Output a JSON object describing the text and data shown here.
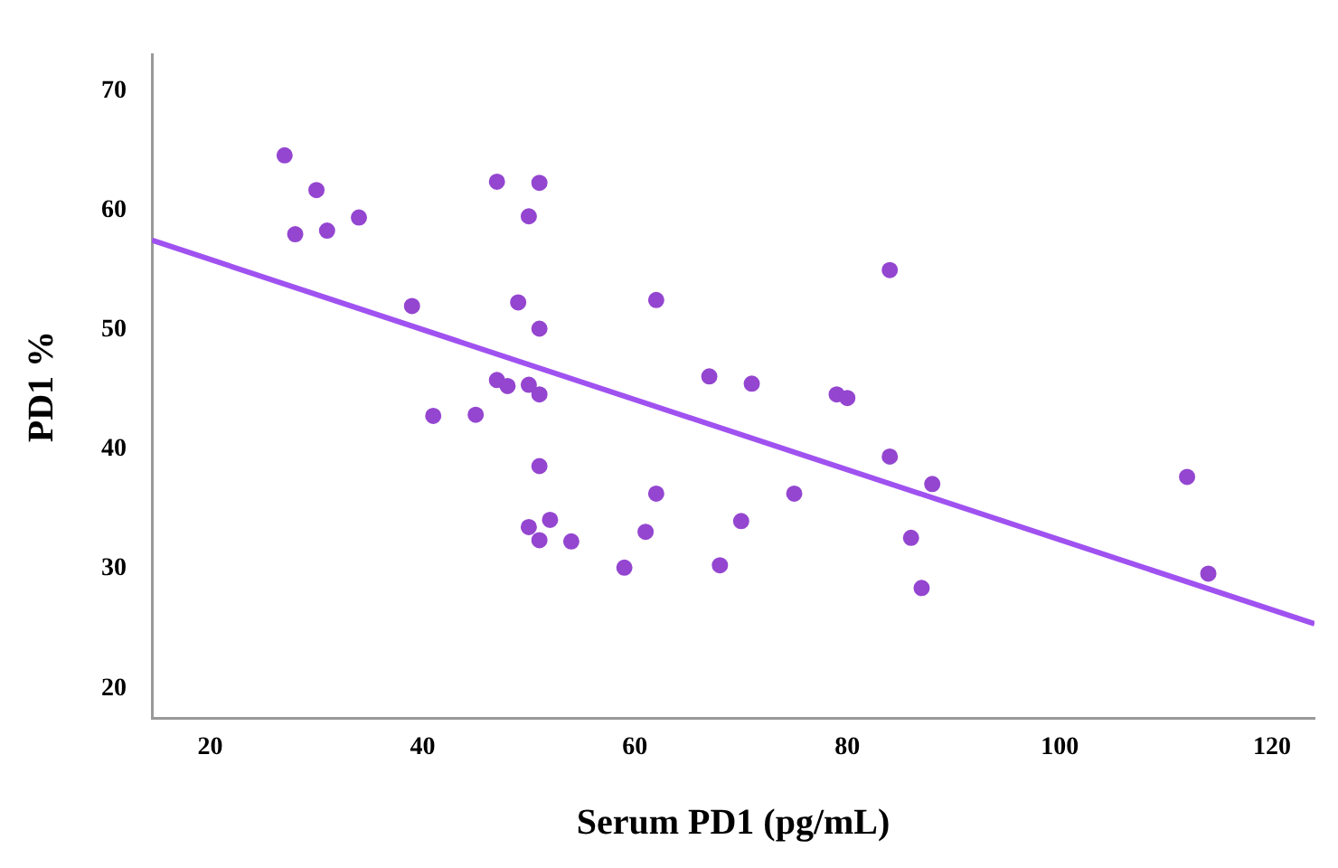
{
  "chart_data": {
    "type": "scatter",
    "xlabel": "Serum PD1 (pg/mL)",
    "ylabel": "PD1 %",
    "xlim": [
      14.5,
      124
    ],
    "ylim": [
      17.5,
      73
    ],
    "xticks": [
      20,
      40,
      60,
      80,
      100,
      120
    ],
    "yticks": [
      20,
      30,
      40,
      50,
      60,
      70
    ],
    "grid": false,
    "legend": false,
    "marker": "circle",
    "series": [
      {
        "color": "#9446d0",
        "x": [
          27,
          28,
          30,
          31,
          34,
          39,
          41,
          45,
          47,
          47,
          48,
          49,
          50,
          50,
          50,
          51,
          51,
          51,
          51,
          51,
          52,
          54,
          59,
          61,
          62,
          62,
          67,
          68,
          70,
          71,
          75,
          79,
          80,
          84,
          84,
          86,
          87,
          88,
          112,
          114
        ],
        "values": [
          64.6,
          58,
          61.7,
          58.3,
          59.4,
          52,
          42.8,
          42.9,
          62.4,
          45.8,
          45.3,
          52.3,
          59.5,
          45.4,
          33.5,
          62.3,
          50.1,
          44.6,
          38.6,
          32.4,
          34.1,
          32.3,
          30.1,
          33.1,
          52.5,
          36.3,
          46.1,
          30.3,
          34,
          45.5,
          36.3,
          44.6,
          44.3,
          55,
          39.4,
          32.6,
          28.4,
          37.1,
          37.7,
          29.6
        ]
      },
      {
        "type": "line",
        "color": "#a052f0",
        "marker": "none",
        "x": [
          14.5,
          124
        ],
        "values": [
          57.5,
          25.4
        ]
      }
    ]
  }
}
